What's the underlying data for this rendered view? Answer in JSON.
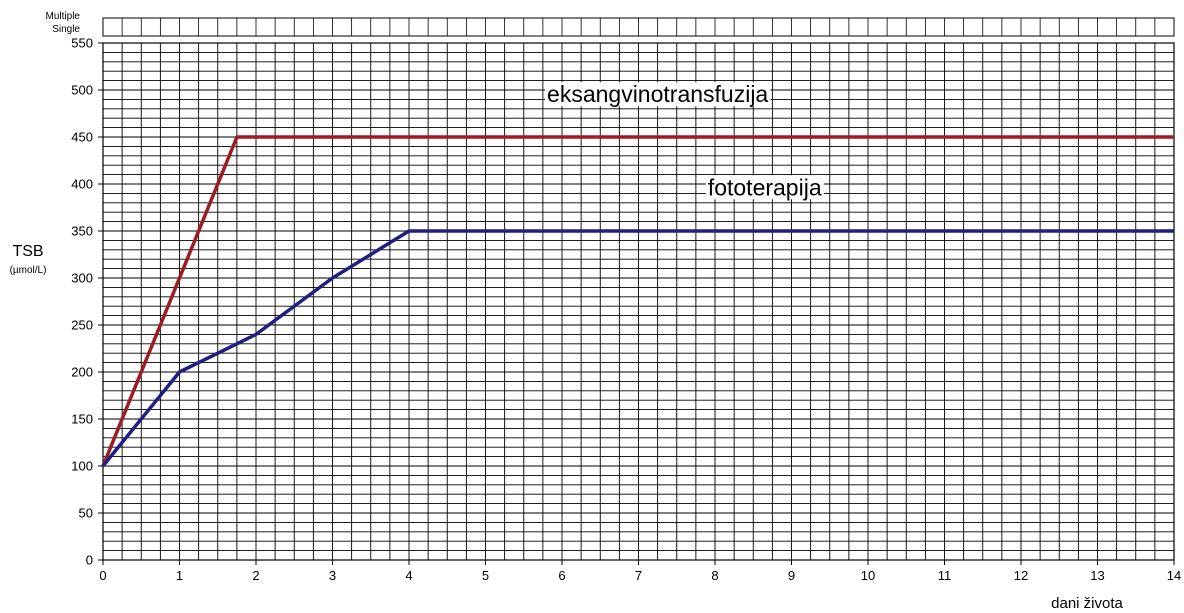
{
  "chart_data": {
    "type": "line",
    "top_labels": [
      "Multiple",
      "Single"
    ],
    "ylabel": "TSB",
    "ylabel_unit": "(µmol/L)",
    "xlabel": "dani života",
    "xlim": [
      0,
      14
    ],
    "ylim": [
      0,
      550
    ],
    "xticks": [
      0,
      1,
      2,
      3,
      4,
      5,
      6,
      7,
      8,
      9,
      10,
      11,
      12,
      13,
      14
    ],
    "yticks": [
      0,
      50,
      100,
      150,
      200,
      250,
      300,
      350,
      400,
      450,
      500,
      550
    ],
    "grid": true,
    "series": [
      {
        "name": "eksangvinotransfuzija",
        "color": "#9b1c22",
        "points": [
          [
            0,
            100
          ],
          [
            1,
            300
          ],
          [
            1.75,
            450
          ],
          [
            14,
            450
          ]
        ]
      },
      {
        "name": "fototerapija",
        "color": "#1f1f7f",
        "points": [
          [
            0,
            100
          ],
          [
            1,
            200
          ],
          [
            2,
            240
          ],
          [
            3,
            300
          ],
          [
            4,
            350
          ],
          [
            14,
            350
          ]
        ]
      }
    ],
    "annotations": [
      {
        "text": "eksangvinotransfuzija",
        "x": 7.25,
        "y": 487
      },
      {
        "text": "fototerapija",
        "x": 8.65,
        "y": 388
      }
    ]
  }
}
